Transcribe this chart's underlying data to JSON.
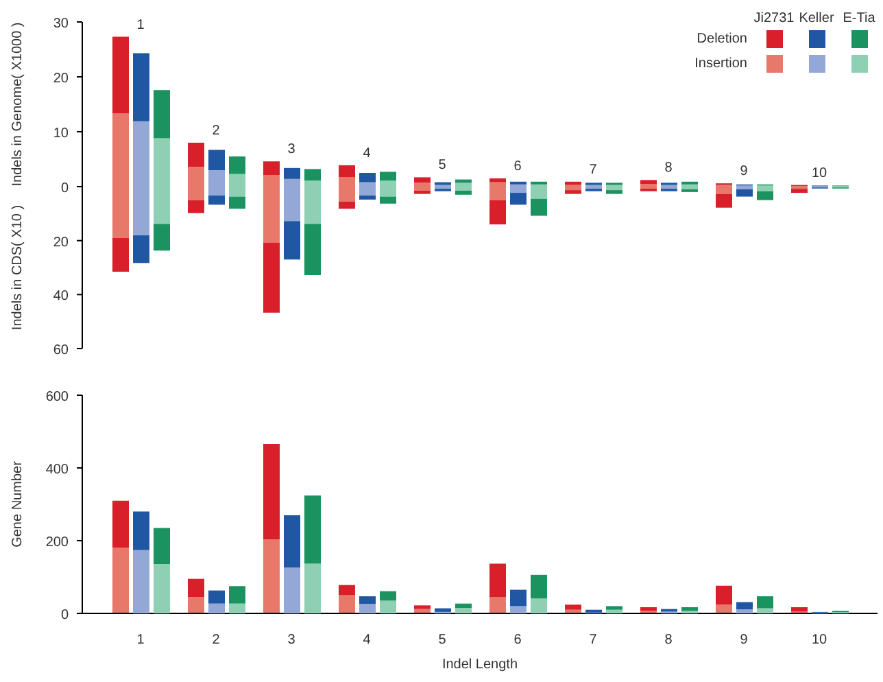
{
  "chart_data": [
    {
      "type": "bar",
      "ylabel": "Indels in Genome( X1000 )",
      "categories": [
        "1",
        "2",
        "3",
        "4",
        "5",
        "6",
        "7",
        "8",
        "9",
        "10"
      ],
      "stacked": true,
      "ylim": [
        0,
        30
      ],
      "yticks": [
        0,
        10,
        20,
        30
      ],
      "tick_labels": "y",
      "legend": "top right",
      "legend_title": "Ji2731",
      "series": [
        {
          "name": "Insertion",
          "color": "#e8796a",
          "values": [
            13.3,
            3.6,
            2.1,
            1.7,
            0.7,
            0.8,
            0.3,
            0.5,
            0.3,
            0.1
          ]
        },
        {
          "name": "Deletion",
          "color": "#d81f2a",
          "values": [
            14.0,
            4.4,
            2.5,
            2.2,
            1.0,
            0.7,
            0.6,
            0.7,
            0.3,
            0.2
          ]
        }
      ]
    },
    {
      "type": "bar",
      "categories": [
        "1",
        "2",
        "3",
        "4",
        "5",
        "6",
        "7",
        "8",
        "9",
        "10"
      ],
      "stacked": true,
      "ylim": [
        0,
        30
      ],
      "yticks": [
        0,
        10,
        20,
        30
      ],
      "tick_labels": "x",
      "legend_title": "Keller",
      "series": [
        {
          "color": "#93a8d6",
          "values": [
            11.9,
            3.0,
            1.4,
            0.8,
            0.3,
            0.4,
            0.3,
            0.3,
            0.2,
            0.1
          ]
        },
        {
          "color": "#1f57a3",
          "values": [
            12.4,
            3.7,
            2.0,
            1.7,
            0.5,
            0.5,
            0.4,
            0.4,
            0.2,
            0.1
          ]
        }
      ]
    },
    {
      "type": "bar",
      "categories": [
        "1",
        "2",
        "3",
        "4",
        "5",
        "6",
        "7",
        "8",
        "9",
        "10"
      ],
      "stacked": true,
      "ylim": [
        0,
        30
      ],
      "yticks": [
        0,
        10,
        20,
        30
      ],
      "tick_labels": false,
      "legend_title": "E-Tia",
      "series": [
        {
          "color": "#8fd0b5",
          "values": [
            8.8,
            2.3,
            1.1,
            1.1,
            0.7,
            0.4,
            0.3,
            0.4,
            0.2,
            0.1
          ]
        },
        {
          "color": "#1a9360",
          "values": [
            8.8,
            3.2,
            2.1,
            1.6,
            0.6,
            0.5,
            0.4,
            0.5,
            0.2,
            0.1
          ]
        }
      ]
    },
    {
      "type": "bar",
      "ylabel": "Indels in CDS( X10 )",
      "categories": [
        "1",
        "2",
        "3",
        "4",
        "5",
        "6",
        "7",
        "8",
        "9",
        "10"
      ],
      "stacked": true,
      "ylim": [
        60,
        0
      ],
      "yticks": [
        20,
        40,
        60
      ],
      "tick_labels": "y",
      "series": [
        {
          "color": "#e8796a",
          "values": [
            19,
            5,
            20.7,
            5.5,
            1.5,
            5,
            1.3,
            0.7,
            2.8,
            0.8
          ]
        },
        {
          "color": "#d81f2a",
          "values": [
            12.5,
            4.8,
            26,
            2.7,
            1.2,
            9,
            1.4,
            1.0,
            5,
            1.5
          ]
        }
      ]
    },
    {
      "type": "bar",
      "categories": [
        "1",
        "2",
        "3",
        "4",
        "5",
        "6",
        "7",
        "8",
        "9",
        "10"
      ],
      "stacked": true,
      "ylim": [
        60,
        0
      ],
      "yticks": [
        20,
        40,
        60
      ],
      "tick_labels": false,
      "series": [
        {
          "color": "#93a8d6",
          "values": [
            18,
            3.3,
            12.8,
            3.3,
            0.8,
            2.3,
            0.8,
            0.8,
            1,
            0.3
          ]
        },
        {
          "color": "#1f57a3",
          "values": [
            10.3,
            3.4,
            14.2,
            1.5,
            0.9,
            4.4,
            0.9,
            0.9,
            2.7,
            0.4
          ]
        }
      ]
    },
    {
      "type": "bar",
      "categories": [
        "1",
        "2",
        "3",
        "4",
        "5",
        "6",
        "7",
        "8",
        "9",
        "10"
      ],
      "stacked": true,
      "ylim": [
        60,
        0
      ],
      "yticks": [
        20,
        40,
        60
      ],
      "tick_labels": false,
      "series": [
        {
          "color": "#8fd0b5",
          "values": [
            13.8,
            3.7,
            13.8,
            3.7,
            1.5,
            4.5,
            1.3,
            1,
            1.7,
            0.3
          ]
        },
        {
          "color": "#1a9360",
          "values": [
            9.9,
            4.5,
            19,
            2.6,
            1.5,
            6.3,
            1.4,
            1,
            3.3,
            0.4
          ]
        }
      ]
    },
    {
      "type": "bar",
      "ylabel": "Gene Number",
      "categories": [
        "1",
        "2",
        "3",
        "4",
        "5",
        "6",
        "7",
        "8",
        "9",
        "10"
      ],
      "stacked": true,
      "ylim": [
        0,
        600
      ],
      "yticks": [
        0,
        200,
        400,
        600
      ],
      "tick_labels": "y",
      "series": [
        {
          "color": "#e8796a",
          "values": [
            180,
            45,
            204,
            50,
            12,
            45,
            10,
            7,
            24,
            5
          ]
        },
        {
          "color": "#d81f2a",
          "values": [
            130,
            50,
            262,
            28,
            10,
            92,
            14,
            10,
            52,
            12
          ]
        }
      ]
    },
    {
      "type": "bar",
      "xlabel": "Indel Length",
      "categories": [
        "1",
        "2",
        "3",
        "4",
        "5",
        "6",
        "7",
        "8",
        "9",
        "10"
      ],
      "stacked": true,
      "ylim": [
        0,
        600
      ],
      "yticks": [
        0,
        200,
        400,
        600
      ],
      "tick_labels": "x",
      "series": [
        {
          "color": "#93a8d6",
          "values": [
            174,
            27,
            126,
            26,
            4,
            20,
            2,
            5,
            11,
            2
          ]
        },
        {
          "color": "#1f57a3",
          "values": [
            106,
            36,
            144,
            21,
            10,
            45,
            8,
            7,
            20,
            2
          ]
        }
      ]
    },
    {
      "type": "bar",
      "categories": [
        "1",
        "2",
        "3",
        "4",
        "5",
        "6",
        "7",
        "8",
        "9",
        "10"
      ],
      "stacked": true,
      "ylim": [
        0,
        600
      ],
      "yticks": [
        0,
        200,
        400,
        600
      ],
      "tick_labels": false,
      "series": [
        {
          "color": "#8fd0b5",
          "values": [
            136,
            27,
            137,
            35,
            15,
            41,
            10,
            7,
            14,
            3
          ]
        },
        {
          "color": "#1a9360",
          "values": [
            99,
            48,
            187,
            26,
            12,
            65,
            10,
            10,
            33,
            4
          ]
        }
      ]
    }
  ]
}
